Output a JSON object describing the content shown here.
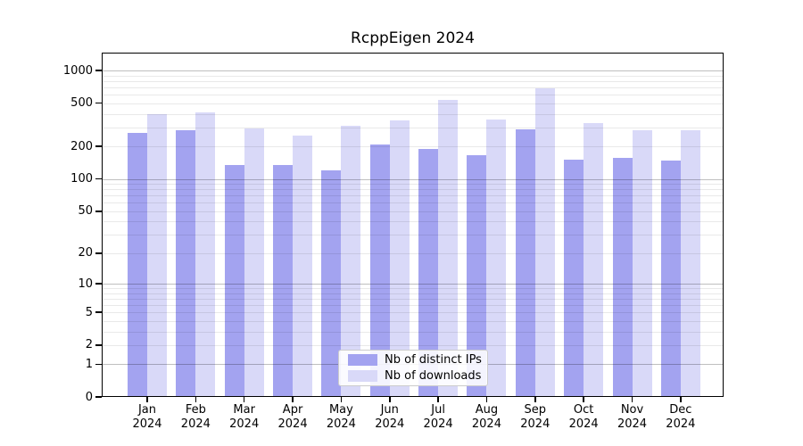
{
  "chart_data": {
    "type": "bar",
    "title": "RcppEigen 2024",
    "categories": [
      "Jan",
      "Feb",
      "Mar",
      "Apr",
      "May",
      "Jun",
      "Jul",
      "Aug",
      "Sep",
      "Oct",
      "Nov",
      "Dec"
    ],
    "x_tick_year": "2024",
    "series": [
      {
        "name": "Nb of distinct IPs",
        "color": "#a3a3f0",
        "values": [
          265,
          280,
          135,
          135,
          120,
          207,
          190,
          165,
          285,
          150,
          157,
          147
        ]
      },
      {
        "name": "Nb of downloads",
        "color": "#d9d9f8",
        "values": [
          395,
          415,
          290,
          250,
          308,
          350,
          538,
          354,
          685,
          330,
          280,
          282
        ]
      }
    ],
    "y_scale": "log1p",
    "y_ticks": [
      0,
      1,
      2,
      5,
      10,
      20,
      50,
      100,
      200,
      500,
      1000
    ],
    "y_grid_major": [
      1,
      10,
      100,
      1000
    ],
    "y_grid_minor": [
      2,
      3,
      4,
      5,
      6,
      7,
      8,
      9,
      20,
      30,
      40,
      50,
      60,
      70,
      80,
      90,
      200,
      300,
      400,
      500,
      600,
      700,
      800,
      900
    ],
    "ylim": [
      0,
      1460
    ],
    "grid": true,
    "legend_position": "lower center"
  },
  "colors": {
    "background": "#ffffff",
    "axis": "#000000",
    "bar_ips": "#a3a3f0",
    "bar_downloads": "#d9d9f8",
    "grid_major": "#c0c0c0",
    "grid_minor": "#e9e9e9",
    "legend_border": "#cccccc"
  }
}
